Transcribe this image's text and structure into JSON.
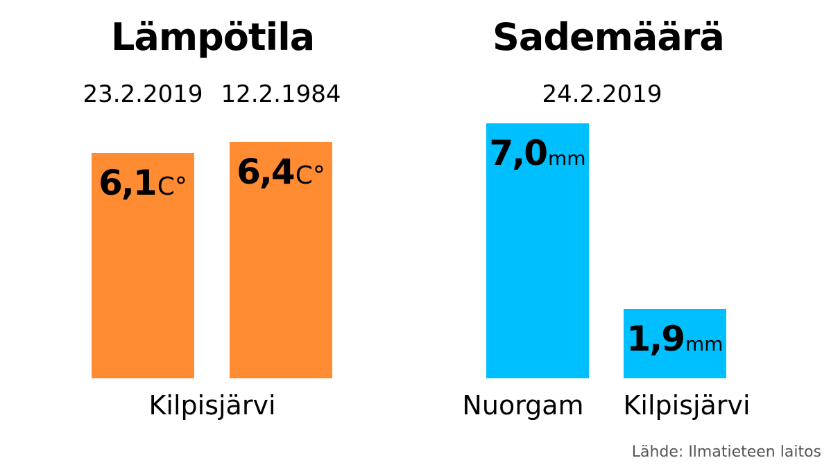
{
  "source": "Lähde: Ilmatieteen laitos",
  "colors": {
    "temperature": "#ff8c33",
    "precipitation": "#00bfff"
  },
  "chart_data": [
    {
      "type": "bar",
      "title": "Lämpötila",
      "location": "Kilpisjärvi",
      "categories": [
        "23.2.2019",
        "12.2.1984"
      ],
      "values": [
        6.1,
        6.4
      ],
      "value_labels": [
        "6,1",
        "6,4"
      ],
      "unit": "C°",
      "ylim": [
        0,
        7.5
      ]
    },
    {
      "type": "bar",
      "title": "Sademäärä",
      "date": "24.2.2019",
      "categories": [
        "Nuorgam",
        "Kilpisjärvi"
      ],
      "values": [
        7.0,
        1.9
      ],
      "value_labels": [
        "7,0",
        "1,9"
      ],
      "unit": "mm",
      "ylim": [
        0,
        7.6
      ]
    }
  ]
}
